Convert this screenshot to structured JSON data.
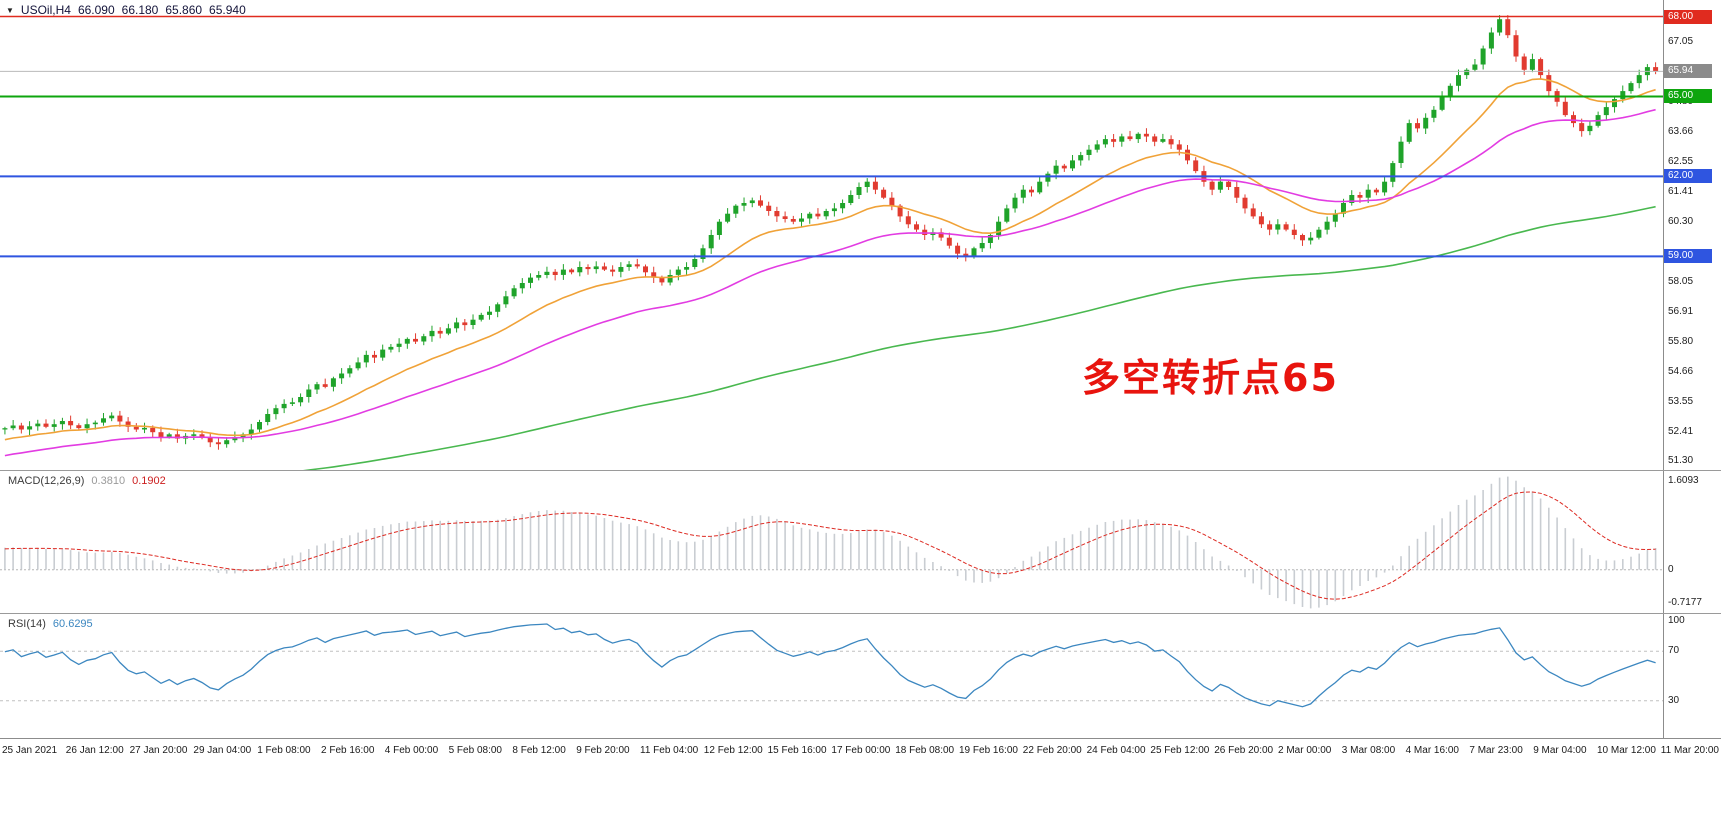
{
  "header": {
    "symbol": "USOil,H4",
    "open": "66.090",
    "high": "66.180",
    "low": "65.860",
    "close": "65.940"
  },
  "annotation": {
    "text": "多空转折点65",
    "color": "#e8140e"
  },
  "chart_data": {
    "type": "candlestick",
    "title": "USOil,H4",
    "timeframe": "H4",
    "current_bar": {
      "open": 66.09,
      "high": 66.18,
      "low": 65.86,
      "close": 65.94
    },
    "y_range": [
      50.98,
      68.62
    ],
    "y_ticks": [
      67.05,
      64.8,
      63.66,
      62.55,
      61.41,
      60.3,
      58.05,
      56.91,
      55.8,
      54.66,
      53.55,
      52.41,
      51.3
    ],
    "levels": [
      {
        "price": 68.0,
        "label": "68.00",
        "color": "#e02b1f",
        "width": 1.5
      },
      {
        "price": 65.0,
        "label": "65.00",
        "color": "#0ea50e",
        "width": 2
      },
      {
        "price": 62.0,
        "label": "62.00",
        "color": "#2f55e0",
        "width": 2
      },
      {
        "price": 59.0,
        "label": "59.00",
        "color": "#2f55e0",
        "width": 2
      }
    ],
    "current_price": {
      "value": 65.94,
      "label": "65.94",
      "color": "#8b8b8b",
      "line_color": "#b9b9b9"
    },
    "up_color": "#1fa32a",
    "down_color": "#e13b30",
    "first_open": 52.5,
    "closes": [
      52.55,
      52.65,
      52.5,
      52.62,
      52.72,
      52.6,
      52.7,
      52.82,
      52.66,
      52.55,
      52.7,
      52.76,
      52.92,
      53.02,
      52.8,
      52.6,
      52.5,
      52.56,
      52.4,
      52.22,
      52.32,
      52.16,
      52.26,
      52.32,
      52.2,
      52.02,
      51.95,
      52.1,
      52.22,
      52.32,
      52.5,
      52.78,
      53.08,
      53.3,
      53.46,
      53.52,
      53.72,
      54.0,
      54.2,
      54.1,
      54.42,
      54.6,
      54.8,
      55.02,
      55.3,
      55.2,
      55.5,
      55.6,
      55.72,
      55.9,
      55.8,
      56.0,
      56.2,
      56.1,
      56.3,
      56.52,
      56.42,
      56.62,
      56.8,
      56.92,
      57.2,
      57.5,
      57.8,
      58.0,
      58.2,
      58.3,
      58.42,
      58.3,
      58.5,
      58.4,
      58.6,
      58.52,
      58.62,
      58.5,
      58.42,
      58.6,
      58.7,
      58.62,
      58.4,
      58.2,
      58.02,
      58.3,
      58.5,
      58.6,
      58.9,
      59.3,
      59.8,
      60.3,
      60.6,
      60.9,
      61.0,
      61.1,
      60.9,
      60.7,
      60.5,
      60.4,
      60.3,
      60.42,
      60.6,
      60.5,
      60.7,
      60.8,
      61.0,
      61.3,
      61.6,
      61.8,
      61.5,
      61.2,
      60.9,
      60.5,
      60.2,
      60.0,
      59.8,
      59.9,
      59.7,
      59.4,
      59.1,
      59.0,
      59.3,
      59.5,
      59.8,
      60.3,
      60.8,
      61.2,
      61.5,
      61.4,
      61.8,
      62.1,
      62.4,
      62.3,
      62.6,
      62.8,
      63.0,
      63.2,
      63.4,
      63.3,
      63.5,
      63.4,
      63.6,
      63.5,
      63.3,
      63.4,
      63.2,
      63.0,
      62.6,
      62.2,
      61.8,
      61.5,
      61.8,
      61.6,
      61.2,
      60.8,
      60.5,
      60.2,
      60.0,
      60.2,
      60.0,
      59.8,
      59.6,
      59.7,
      60.0,
      60.3,
      60.6,
      61.0,
      61.3,
      61.2,
      61.5,
      61.4,
      61.8,
      62.5,
      63.3,
      64.0,
      63.8,
      64.2,
      64.5,
      65.0,
      65.4,
      65.8,
      66.0,
      66.2,
      66.8,
      67.4,
      67.9,
      67.3,
      66.5,
      66.0,
      66.4,
      65.8,
      65.2,
      64.8,
      64.3,
      64.0,
      63.7,
      63.9,
      64.3,
      64.6,
      64.9,
      65.2,
      65.5,
      65.8,
      66.1,
      65.94
    ],
    "moving_averages": [
      {
        "name": "fast-ma",
        "period": 16,
        "color": "#f0a238"
      },
      {
        "name": "medium-ma",
        "period": 40,
        "color": "#e23ce2"
      },
      {
        "name": "slow-ma",
        "period": 160,
        "color": "#49b84f"
      }
    ],
    "x_labels": [
      "25 Jan 2021",
      "26 Jan 12:00",
      "27 Jan 20:00",
      "29 Jan 04:00",
      "1 Feb 08:00",
      "2 Feb 16:00",
      "4 Feb 00:00",
      "5 Feb 08:00",
      "8 Feb 12:00",
      "9 Feb 20:00",
      "11 Feb 04:00",
      "12 Feb 12:00",
      "15 Feb 16:00",
      "17 Feb 00:00",
      "18 Feb 08:00",
      "19 Feb 16:00",
      "22 Feb 20:00",
      "24 Feb 04:00",
      "25 Feb 12:00",
      "26 Feb 20:00",
      "2 Mar 00:00",
      "3 Mar 08:00",
      "4 Mar 16:00",
      "7 Mar 23:00",
      "9 Mar 04:00",
      "10 Mar 12:00",
      "11 Mar 20:00"
    ],
    "indicators": {
      "macd": {
        "name": "MACD(12,26,9)",
        "main_value": "0.3810",
        "signal_value": "0.1902",
        "fast": 12,
        "slow": 26,
        "signal": 9,
        "axis_max": "1.6093",
        "axis_zero": "0",
        "axis_min": "-0.7177",
        "histogram_color": "#c9cdd2",
        "signal_color": "#dd2a22"
      },
      "rsi": {
        "name": "RSI(14)",
        "value": "60.6295",
        "period": 14,
        "axis": [
          "100",
          "70",
          "30"
        ],
        "levels": [
          70,
          30
        ],
        "color": "#3c87c0"
      }
    }
  }
}
